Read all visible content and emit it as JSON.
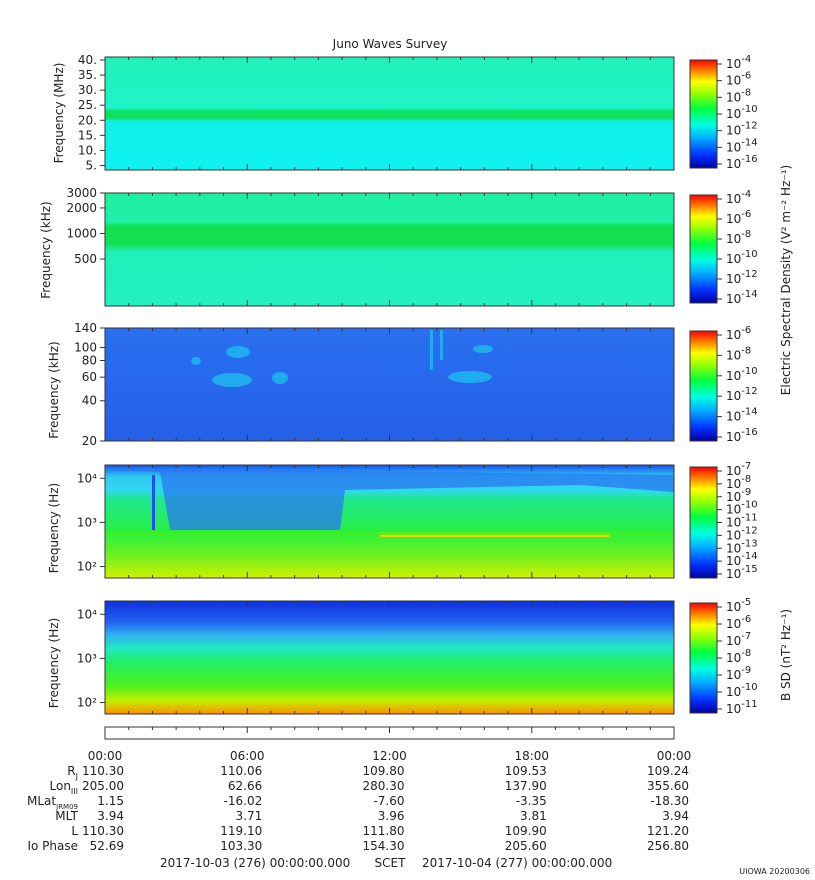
{
  "title": "Juno Waves Survey",
  "chart_data": [
    {
      "type": "heatmap",
      "ylabel": "Frequency (MHz)",
      "yscale": "linear",
      "ylim": [
        3.5,
        41
      ],
      "yticks": [
        5,
        10,
        15,
        20,
        25,
        30,
        35,
        40
      ],
      "ytick_labels": [
        "5.",
        "10.",
        "15.",
        "20.",
        "25.",
        "30.",
        "35.",
        "40."
      ],
      "colorbar_ticks": [
        "10-4",
        "10-6",
        "10-8",
        "10-10",
        "10-12",
        "10-14",
        "10-16"
      ],
      "features": [
        {
          "type": "horizontal_band",
          "y": 21,
          "level": "10-11"
        }
      ],
      "background_level": "10-13"
    },
    {
      "type": "heatmap",
      "ylabel": "Frequency (kHz)",
      "yscale": "log",
      "ylim": [
        140,
        3000
      ],
      "yticks": [
        500,
        1000,
        2000,
        3000
      ],
      "ytick_labels": [
        "500",
        "1000",
        "2000",
        "3000"
      ],
      "colorbar_ticks": [
        "10-4",
        "10-6",
        "10-8",
        "10-10",
        "10-12",
        "10-14"
      ],
      "features": [
        {
          "type": "horizontal_band",
          "y": 1000,
          "level": "10-11"
        }
      ],
      "background_level": "10-12"
    },
    {
      "type": "heatmap",
      "ylabel": "Frequency (kHz)",
      "yscale": "log",
      "ylim": [
        20,
        140
      ],
      "yticks": [
        20,
        40,
        60,
        80,
        100,
        140
      ],
      "ytick_labels": [
        "20",
        "40",
        "60",
        "80",
        "100",
        "140"
      ],
      "colorbar_ticks": [
        "10-6",
        "10-8",
        "10-10",
        "10-12",
        "10-14",
        "10-16"
      ],
      "background_level": "10-14"
    },
    {
      "type": "heatmap",
      "ylabel": "Frequency (Hz)",
      "yscale": "log",
      "ylim": [
        55,
        20000
      ],
      "yticks": [
        100,
        1000,
        10000
      ],
      "ytick_labels": [
        "10²",
        "10³",
        "10⁴"
      ],
      "colorbar_ticks": [
        "10-7",
        "10-8",
        "10-9",
        "10-10",
        "10-11",
        "10-12",
        "10-13",
        "10-14",
        "10-15"
      ],
      "features": [
        {
          "type": "horizontal_band",
          "y": 560,
          "level": "10-9"
        }
      ]
    },
    {
      "type": "heatmap",
      "ylabel": "Frequency (Hz)",
      "yscale": "log",
      "ylim": [
        55,
        20000
      ],
      "yticks": [
        100,
        1000,
        10000
      ],
      "ytick_labels": [
        "10²",
        "10³",
        "10⁴"
      ],
      "colorbar_ticks": [
        "10-5",
        "10-6",
        "10-7",
        "10-8",
        "10-9",
        "10-10",
        "10-11"
      ]
    }
  ],
  "colorbar_label_electric": "Electric Spectral Density (V² m⁻² Hz⁻¹)",
  "colorbar_label_magnetic": "B SD (nT² Hz⁻¹)",
  "x_tick_labels": [
    "00:00",
    "06:00",
    "12:00",
    "18:00",
    "00:00"
  ],
  "ephemeris": [
    {
      "label": "Rj",
      "values": [
        "110.30",
        "110.06",
        "109.80",
        "109.53",
        "109.24"
      ]
    },
    {
      "label": "LonIII",
      "values": [
        "205.00",
        "62.66",
        "280.30",
        "137.90",
        "355.60"
      ]
    },
    {
      "label": "MLatJRM09",
      "values": [
        "1.15",
        "-16.02",
        "-7.60",
        "-3.35",
        "-18.30"
      ]
    },
    {
      "label": "MLT",
      "values": [
        "3.94",
        "3.71",
        "3.96",
        "3.81",
        "3.94"
      ]
    },
    {
      "label": "L",
      "values": [
        "110.30",
        "119.10",
        "111.80",
        "109.90",
        "121.20"
      ]
    },
    {
      "label": "Io Phase",
      "values": [
        "52.69",
        "103.30",
        "154.30",
        "205.60",
        "256.80"
      ]
    }
  ],
  "footer": {
    "start": "2017-10-03 (276) 00:00:00.000",
    "mid": "SCET",
    "end": "2017-10-04 (277) 00:00:00.000"
  },
  "stamp": "UIOWA 20200306"
}
